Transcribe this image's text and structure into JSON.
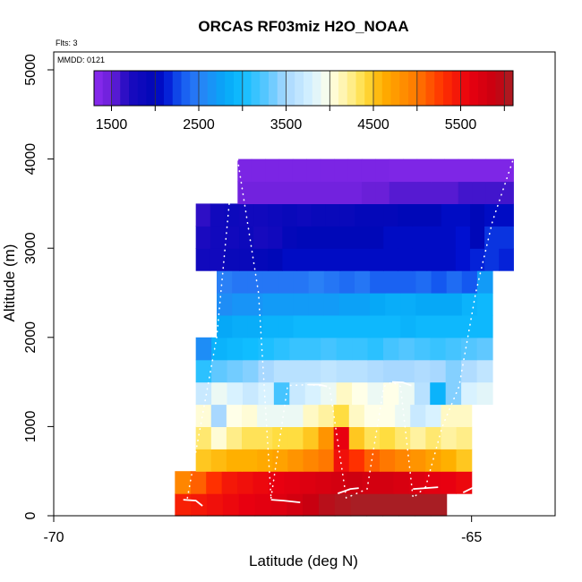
{
  "chart_data": {
    "type": "heatmap",
    "title": "ORCAS RF03miz H2O_NOAA",
    "xlabel": "Latitude (deg N)",
    "ylabel": "Altitude (m)",
    "annotations": {
      "flts": "Flts: 3",
      "mmdd": "MMDD: 0121"
    },
    "xlim": [
      -70.0,
      -64.0
    ],
    "ylim": [
      0,
      5200
    ],
    "x_ticks": [
      -70,
      -65
    ],
    "y_ticks": [
      0,
      1000,
      2000,
      3000,
      4000,
      5000
    ],
    "x_tick_labels": [
      "-70",
      "-65"
    ],
    "y_tick_labels": [
      "0",
      "1000",
      "2000",
      "3000",
      "4000",
      "5000"
    ],
    "colorbar": {
      "min": 1300,
      "max": 6100,
      "step": 100,
      "tick_values": [
        1500,
        2500,
        3500,
        4500,
        5500
      ],
      "tick_labels": [
        "1500",
        "2500",
        "3500",
        "4500",
        "5500"
      ],
      "major_lines": [
        1500,
        2000,
        2500,
        3000,
        3500,
        4000,
        4500,
        5000,
        5500,
        6000
      ],
      "stops": [
        {
          "v": 1300,
          "c": "#8B2BF0"
        },
        {
          "v": 1500,
          "c": "#6A1FD8"
        },
        {
          "v": 1700,
          "c": "#1A0ABF"
        },
        {
          "v": 2000,
          "c": "#0008B8"
        },
        {
          "v": 2100,
          "c": "#0010D0"
        },
        {
          "v": 2300,
          "c": "#1458F0"
        },
        {
          "v": 2500,
          "c": "#2A80F6"
        },
        {
          "v": 2800,
          "c": "#06A8F7"
        },
        {
          "v": 3000,
          "c": "#10BDFF"
        },
        {
          "v": 3300,
          "c": "#60C8FF"
        },
        {
          "v": 3500,
          "c": "#A8D8FF"
        },
        {
          "v": 3800,
          "c": "#D8F2FF"
        },
        {
          "v": 4000,
          "c": "#FFFFE8"
        },
        {
          "v": 4200,
          "c": "#FFF2A0"
        },
        {
          "v": 4400,
          "c": "#FFDD40"
        },
        {
          "v": 4600,
          "c": "#FFB000"
        },
        {
          "v": 5000,
          "c": "#FF7800"
        },
        {
          "v": 5300,
          "c": "#FF3000"
        },
        {
          "v": 5600,
          "c": "#E80010"
        },
        {
          "v": 5900,
          "c": "#C80010"
        },
        {
          "v": 6100,
          "c": "#A81E24"
        }
      ]
    },
    "bin_height_m": 250,
    "rows": [
      {
        "alt": 125,
        "x0": -68.55,
        "x1": -65.3,
        "values": [
          5400,
          5450,
          5500,
          5550,
          5600,
          5650,
          5700,
          5800,
          5900,
          6000,
          6050,
          6100,
          6100,
          6100,
          6100,
          6100,
          6100
        ]
      },
      {
        "alt": 375,
        "x0": -68.55,
        "x1": -65.0,
        "values": [
          4900,
          5100,
          5300,
          5450,
          5500,
          5550,
          5600,
          5650,
          5700,
          5750,
          5800,
          5850,
          5800,
          5800,
          5750,
          5700,
          5650,
          5600,
          5550
        ]
      },
      {
        "alt": 625,
        "x0": -68.3,
        "x1": -65.0,
        "values": [
          4500,
          4550,
          4600,
          4600,
          4650,
          4700,
          4800,
          4900,
          5000,
          5500,
          5300,
          5100,
          5000,
          4900,
          4800,
          4700,
          4600,
          4500
        ]
      },
      {
        "alt": 875,
        "x0": -68.3,
        "x1": -65.0,
        "values": [
          4300,
          4050,
          4250,
          4350,
          4350,
          4400,
          4400,
          4500,
          4800,
          5600,
          4500,
          4350,
          4400,
          4300,
          4200,
          4300,
          4200,
          4250
        ]
      },
      {
        "alt": 1125,
        "x0": -68.3,
        "x1": -65.0,
        "values": [
          4050,
          3500,
          4000,
          4050,
          3900,
          3900,
          3900,
          4100,
          4200,
          4400,
          4100,
          4000,
          4000,
          3900,
          3700,
          3800,
          4100,
          4100
        ]
      },
      {
        "alt": 1375,
        "x0": -68.3,
        "x1": -64.75,
        "values": [
          3700,
          3900,
          3800,
          3700,
          3800,
          3200,
          3700,
          3800,
          3900,
          4100,
          4000,
          3900,
          4000,
          3900,
          3600,
          2900,
          3400,
          3800,
          3850
        ]
      },
      {
        "alt": 1625,
        "x0": -68.3,
        "x1": -64.75,
        "values": [
          3100,
          3300,
          3350,
          3400,
          3500,
          3600,
          3600,
          3600,
          3650,
          3600,
          3600,
          3550,
          3500,
          3500,
          3550,
          3500,
          3400,
          3550,
          3650
        ]
      },
      {
        "alt": 1875,
        "x0": -68.3,
        "x1": -64.75,
        "values": [
          2600,
          2900,
          2950,
          3000,
          3050,
          3100,
          3150,
          3150,
          3200,
          3150,
          3150,
          3100,
          3200,
          3250,
          3200,
          3150,
          3200,
          3250,
          3300
        ]
      },
      {
        "alt": 2125,
        "x0": -68.05,
        "x1": -64.75,
        "values": [
          2800,
          2850,
          2850,
          2900,
          2900,
          2950,
          2950,
          2950,
          2950,
          2950,
          2950,
          2950,
          2900,
          2950,
          2950,
          2950,
          2950,
          2950
        ]
      },
      {
        "alt": 2375,
        "x0": -68.05,
        "x1": -64.75,
        "values": [
          2600,
          2650,
          2650,
          2700,
          2700,
          2700,
          2700,
          2700,
          2750,
          2750,
          2800,
          2850,
          2850,
          2800,
          2800,
          2800,
          2900,
          2950
        ]
      },
      {
        "alt": 2625,
        "x0": -68.05,
        "x1": -64.75,
        "values": [
          2500,
          2450,
          2450,
          2450,
          2450,
          2450,
          2500,
          2450,
          2400,
          2450,
          2350,
          2350,
          2350,
          2400,
          2300,
          2400,
          2300,
          2700
        ]
      },
      {
        "alt": 2875,
        "x0": -68.3,
        "x1": -64.5,
        "values": [
          1800,
          1800,
          1900,
          1900,
          1950,
          2000,
          2050,
          2050,
          2050,
          2050,
          2050,
          2050,
          2050,
          2050,
          2050,
          2050,
          2050,
          2050,
          2100,
          2150,
          2200,
          2150
        ]
      },
      {
        "alt": 3125,
        "x0": -68.3,
        "x1": -64.5,
        "values": [
          1700,
          1800,
          1800,
          1850,
          1750,
          1800,
          1950,
          2000,
          2000,
          2000,
          2000,
          2000,
          2000,
          2050,
          2050,
          2050,
          2050,
          2050,
          2100,
          2000,
          2200,
          2200
        ]
      },
      {
        "alt": 3375,
        "x0": -68.3,
        "x1": -64.5,
        "values": [
          1650,
          1800,
          1850,
          1800,
          1800,
          1850,
          1900,
          1850,
          1900,
          1900,
          1900,
          1950,
          1950,
          1950,
          2000,
          2000,
          2000,
          2050,
          2050,
          2000,
          2050,
          2050
        ]
      },
      {
        "alt": 3625,
        "x0": -67.8,
        "x1": -64.5,
        "values": [
          1450,
          1450,
          1450,
          1450,
          1450,
          1450,
          1450,
          1450,
          1450,
          1500,
          1500,
          1550,
          1550,
          1550,
          1550,
          1550,
          1600,
          1600,
          1600,
          1600
        ]
      },
      {
        "alt": 3875,
        "x0": -67.8,
        "x1": -64.5,
        "values": [
          1400,
          1400,
          1400,
          1400,
          1400,
          1400,
          1400,
          1400,
          1400,
          1400,
          1400,
          1380,
          1380,
          1380,
          1380,
          1380,
          1380,
          1380,
          1380,
          1380
        ]
      }
    ],
    "flight_tracks": [
      {
        "kind": "dotted",
        "x": [
          -68.4,
          -68.05,
          -67.9,
          -67.8,
          -67.55,
          -67.4
        ],
        "y": [
          200,
          2000,
          3500,
          4000,
          2500,
          200
        ]
      },
      {
        "kind": "dotted",
        "x": [
          -67.4,
          -67.2,
          -66.95,
          -66.7,
          -66.5,
          -66.25
        ],
        "y": [
          200,
          1460,
          1470,
          1450,
          200,
          300
        ]
      },
      {
        "kind": "dotted",
        "x": [
          -66.25,
          -66.05,
          -65.95,
          -65.85,
          -65.7,
          -65.55
        ],
        "y": [
          300,
          1450,
          1500,
          1450,
          200,
          320
        ]
      },
      {
        "kind": "dotted",
        "x": [
          -65.55,
          -65.35,
          -65.15,
          -64.95,
          -64.75,
          -64.5
        ],
        "y": [
          320,
          1000,
          1450,
          2500,
          3300,
          4000
        ]
      },
      {
        "kind": "solid",
        "x": [
          -68.45,
          -68.3,
          -68.22
        ],
        "y": [
          180,
          170,
          110
        ]
      },
      {
        "kind": "solid",
        "x": [
          -67.4,
          -67.25,
          -67.05
        ],
        "y": [
          180,
          170,
          150
        ]
      },
      {
        "kind": "solid",
        "x": [
          -66.95,
          -66.82,
          -66.73
        ],
        "y": [
          1470,
          1470,
          1450
        ]
      },
      {
        "kind": "solid",
        "x": [
          -66.6,
          -66.45,
          -66.35
        ],
        "y": [
          250,
          300,
          310
        ]
      },
      {
        "kind": "solid",
        "x": [
          -65.95,
          -65.82,
          -65.72
        ],
        "y": [
          1500,
          1495,
          1460
        ]
      },
      {
        "kind": "solid",
        "x": [
          -65.7,
          -65.55,
          -65.4
        ],
        "y": [
          300,
          310,
          320
        ]
      },
      {
        "kind": "solid",
        "x": [
          -65.1,
          -64.95,
          -64.82
        ],
        "y": [
          260,
          330,
          360
        ]
      }
    ]
  }
}
